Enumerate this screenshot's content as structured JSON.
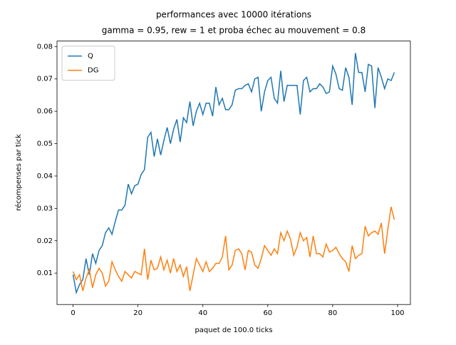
{
  "chart_data": {
    "type": "line",
    "title": "performances avec 10000 itérations",
    "subtitle": "gamma = 0.95, rew = 1 et proba échec au mouvement = 0.8",
    "xlabel": "paquet de 100.0 ticks",
    "ylabel": "récompenses par tick",
    "x": [
      0,
      1,
      2,
      3,
      4,
      5,
      6,
      7,
      8,
      9,
      10,
      11,
      12,
      13,
      14,
      15,
      16,
      17,
      18,
      19,
      20,
      21,
      22,
      23,
      24,
      25,
      26,
      27,
      28,
      29,
      30,
      31,
      32,
      33,
      34,
      35,
      36,
      37,
      38,
      39,
      40,
      41,
      42,
      43,
      44,
      45,
      46,
      47,
      48,
      49,
      50,
      51,
      52,
      53,
      54,
      55,
      56,
      57,
      58,
      59,
      60,
      61,
      62,
      63,
      64,
      65,
      66,
      67,
      68,
      69,
      70,
      71,
      72,
      73,
      74,
      75,
      76,
      77,
      78,
      79,
      80,
      81,
      82,
      83,
      84,
      85,
      86,
      87,
      88,
      89,
      90,
      91,
      92,
      93,
      94,
      95,
      96,
      97,
      98,
      99
    ],
    "series": [
      {
        "name": "Q",
        "color": "#1f77b4",
        "values": [
          0.0095,
          0.004,
          0.0065,
          0.008,
          0.0145,
          0.0095,
          0.016,
          0.013,
          0.017,
          0.0185,
          0.0225,
          0.024,
          0.022,
          0.026,
          0.0295,
          0.0295,
          0.031,
          0.0375,
          0.0345,
          0.037,
          0.0375,
          0.0405,
          0.042,
          0.052,
          0.0535,
          0.046,
          0.0515,
          0.0465,
          0.051,
          0.055,
          0.05,
          0.0545,
          0.0575,
          0.0505,
          0.058,
          0.0565,
          0.063,
          0.0555,
          0.06,
          0.0625,
          0.059,
          0.0625,
          0.0625,
          0.0585,
          0.0675,
          0.062,
          0.064,
          0.0605,
          0.0605,
          0.062,
          0.0665,
          0.067,
          0.067,
          0.068,
          0.0685,
          0.066,
          0.07,
          0.0705,
          0.06,
          0.066,
          0.0695,
          0.0705,
          0.064,
          0.0625,
          0.0725,
          0.063,
          0.068,
          0.068,
          0.068,
          0.068,
          0.059,
          0.0695,
          0.0705,
          0.066,
          0.067,
          0.067,
          0.0685,
          0.0675,
          0.0655,
          0.066,
          0.074,
          0.0715,
          0.067,
          0.0665,
          0.0735,
          0.0705,
          0.062,
          0.078,
          0.072,
          0.072,
          0.066,
          0.0745,
          0.074,
          0.061,
          0.0735,
          0.0705,
          0.067,
          0.07,
          0.0695,
          0.072
        ]
      },
      {
        "name": "DG",
        "color": "#ff7f0e",
        "values": [
          0.0105,
          0.008,
          0.0095,
          0.0045,
          0.0085,
          0.011,
          0.0055,
          0.0095,
          0.0115,
          0.01,
          0.006,
          0.0075,
          0.0135,
          0.011,
          0.009,
          0.0075,
          0.0105,
          0.0095,
          0.0085,
          0.0105,
          0.01,
          0.0095,
          0.0175,
          0.008,
          0.014,
          0.011,
          0.0115,
          0.015,
          0.011,
          0.014,
          0.01,
          0.0145,
          0.0105,
          0.0125,
          0.009,
          0.012,
          0.0045,
          0.0095,
          0.0145,
          0.0125,
          0.0105,
          0.0135,
          0.0105,
          0.0115,
          0.013,
          0.013,
          0.015,
          0.0215,
          0.011,
          0.0125,
          0.017,
          0.0175,
          0.016,
          0.011,
          0.017,
          0.0165,
          0.0125,
          0.0115,
          0.0145,
          0.0185,
          0.017,
          0.0155,
          0.0175,
          0.016,
          0.0225,
          0.02,
          0.023,
          0.0205,
          0.0155,
          0.018,
          0.0225,
          0.02,
          0.021,
          0.015,
          0.0215,
          0.016,
          0.016,
          0.015,
          0.019,
          0.0165,
          0.017,
          0.018,
          0.016,
          0.0145,
          0.0135,
          0.0105,
          0.0185,
          0.0145,
          0.0155,
          0.016,
          0.0245,
          0.0215,
          0.0225,
          0.023,
          0.022,
          0.0255,
          0.016,
          0.0235,
          0.0305,
          0.0265
        ]
      }
    ],
    "xlim": [
      -4.95,
      103.95
    ],
    "xticks": [
      0,
      20,
      40,
      60,
      80,
      100
    ],
    "ylim": [
      0.0003,
      0.0817
    ],
    "yticks": [
      0.01,
      0.02,
      0.03,
      0.04,
      0.05,
      0.06,
      0.07,
      0.08
    ],
    "grid": false,
    "legend": "upper left"
  }
}
